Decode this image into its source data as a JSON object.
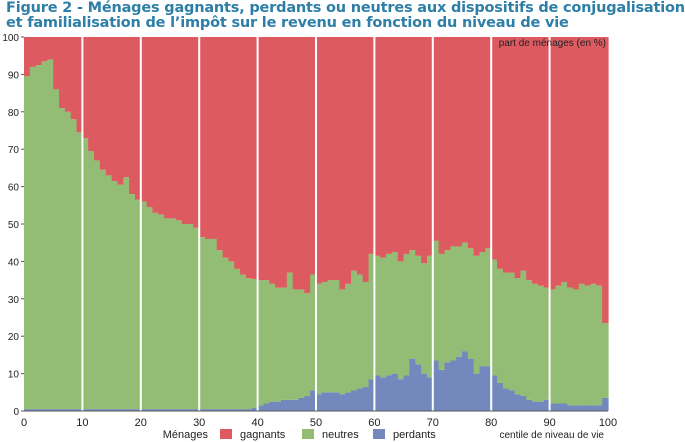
{
  "figure": {
    "title_line1": "Figure 2 - Ménages gagnants, perdants ou neutres aux dispositifs de conjugalisation",
    "title_line2": "et familialisation de l’impôt sur le revenu en fonction du niveau de vie"
  },
  "chart_data": {
    "type": "bar",
    "stacked": true,
    "ylabel": "part de ménages (en %)",
    "xlabel": "centile de niveau de vie",
    "ylim": [
      0,
      100
    ],
    "xlim": [
      0,
      100
    ],
    "xticks": [
      0,
      10,
      20,
      30,
      40,
      50,
      60,
      70,
      80,
      90,
      100
    ],
    "yticks": [
      0,
      10,
      20,
      30,
      40,
      50,
      60,
      70,
      80,
      90,
      100
    ],
    "grid": "vertical",
    "legend_title": "Ménages",
    "legend_position": "bottom",
    "categories": [
      1,
      2,
      3,
      4,
      5,
      6,
      7,
      8,
      9,
      10,
      11,
      12,
      13,
      14,
      15,
      16,
      17,
      18,
      19,
      20,
      21,
      22,
      23,
      24,
      25,
      26,
      27,
      28,
      29,
      30,
      31,
      32,
      33,
      34,
      35,
      36,
      37,
      38,
      39,
      40,
      41,
      42,
      43,
      44,
      45,
      46,
      47,
      48,
      49,
      50,
      51,
      52,
      53,
      54,
      55,
      56,
      57,
      58,
      59,
      60,
      61,
      62,
      63,
      64,
      65,
      66,
      67,
      68,
      69,
      70,
      71,
      72,
      73,
      74,
      75,
      76,
      77,
      78,
      79,
      80,
      81,
      82,
      83,
      84,
      85,
      86,
      87,
      88,
      89,
      90,
      91,
      92,
      93,
      94,
      95,
      96,
      97,
      98,
      99,
      100
    ],
    "series": [
      {
        "name": "perdants",
        "color": "#7389bd",
        "values": [
          0.5,
          0.5,
          0.5,
          0.5,
          0.5,
          0.5,
          0.5,
          0.5,
          0.5,
          0.5,
          0.5,
          0.5,
          0.5,
          0.5,
          0.5,
          0.5,
          0.5,
          0.5,
          0.5,
          0.5,
          0.5,
          0.5,
          0.5,
          0.5,
          0.5,
          0.5,
          0.5,
          0.5,
          0.5,
          0.5,
          0.5,
          0.5,
          0.5,
          0.5,
          0.5,
          0.5,
          0.5,
          0.5,
          0.5,
          0.8,
          1.5,
          2,
          2.5,
          2.5,
          3,
          3,
          3,
          3.5,
          4,
          5.5,
          4.5,
          5,
          5,
          5,
          4.5,
          5,
          5.5,
          6,
          6.5,
          8.5,
          9.5,
          9,
          9.5,
          10,
          8.5,
          9.5,
          14,
          12.5,
          10,
          9,
          13.5,
          11,
          13,
          13.5,
          14.5,
          16,
          14,
          10,
          12,
          12,
          9.5,
          7.5,
          6,
          5.5,
          4.5,
          4,
          3,
          2.5,
          2.5,
          3,
          2,
          2,
          2,
          1.5,
          1.5,
          1.5,
          1.5,
          1.5,
          1.5,
          3.5
        ]
      },
      {
        "name": "neutres",
        "color": "#93bd75",
        "values": [
          89,
          91.5,
          92,
          93,
          93.5,
          85.5,
          80.5,
          79.5,
          77.5,
          74,
          72.5,
          69,
          66.5,
          64,
          62.5,
          61,
          60,
          62,
          57.5,
          56,
          55.5,
          54,
          52.5,
          52,
          51,
          51,
          50.5,
          49.5,
          49.5,
          48.5,
          46,
          45.5,
          45.5,
          42.5,
          40.5,
          39.5,
          37.5,
          36,
          35,
          34.5,
          33.5,
          33,
          31.5,
          30.5,
          30,
          34,
          29.5,
          29,
          27.5,
          31,
          29.5,
          29.5,
          30,
          30,
          28,
          29,
          32,
          30.5,
          28,
          33.5,
          32,
          32,
          32.5,
          32.5,
          31.5,
          32.5,
          29,
          29,
          29.5,
          32.5,
          32,
          31,
          30,
          30.5,
          29.5,
          29,
          29.5,
          31.5,
          30.5,
          31.5,
          31,
          30.5,
          31,
          31.5,
          31,
          33.5,
          32,
          31.5,
          31,
          30,
          30.5,
          31.5,
          32.5,
          31.5,
          31,
          32.5,
          32,
          32.5,
          32,
          20
        ]
      },
      {
        "name": "gagnants",
        "color": "#dd5b60",
        "values": [
          10.5,
          8,
          7.5,
          6.5,
          6,
          14,
          19,
          20,
          22,
          25.5,
          27,
          30.5,
          33,
          35.5,
          37,
          38.5,
          39.5,
          37.5,
          42,
          43.5,
          44,
          45.5,
          47,
          47.5,
          48.5,
          48.5,
          49,
          50,
          50,
          51,
          53.5,
          54,
          54,
          57,
          59,
          60,
          62,
          63.5,
          64.5,
          64.7,
          65,
          65,
          66,
          67,
          67,
          63,
          67.5,
          67.5,
          68.5,
          63.5,
          66,
          65.5,
          65,
          65,
          67.5,
          66,
          62.5,
          63.5,
          65.5,
          58,
          58.5,
          59,
          58,
          57.5,
          60,
          58,
          57,
          58.5,
          60.5,
          58.5,
          54.5,
          58,
          57,
          56,
          56,
          55,
          56.5,
          58.5,
          57.5,
          56.5,
          59.5,
          62,
          63,
          63,
          64.5,
          62.5,
          65,
          66,
          66.5,
          67,
          67.5,
          66.5,
          65.5,
          67,
          67.5,
          66,
          66.5,
          66,
          66.5,
          76.5
        ]
      }
    ]
  },
  "legend": {
    "title": "Ménages",
    "items": [
      {
        "label": "gagnants",
        "color": "#dd5b60"
      },
      {
        "label": "neutres",
        "color": "#93bd75"
      },
      {
        "label": "perdants",
        "color": "#7389bd"
      }
    ]
  }
}
